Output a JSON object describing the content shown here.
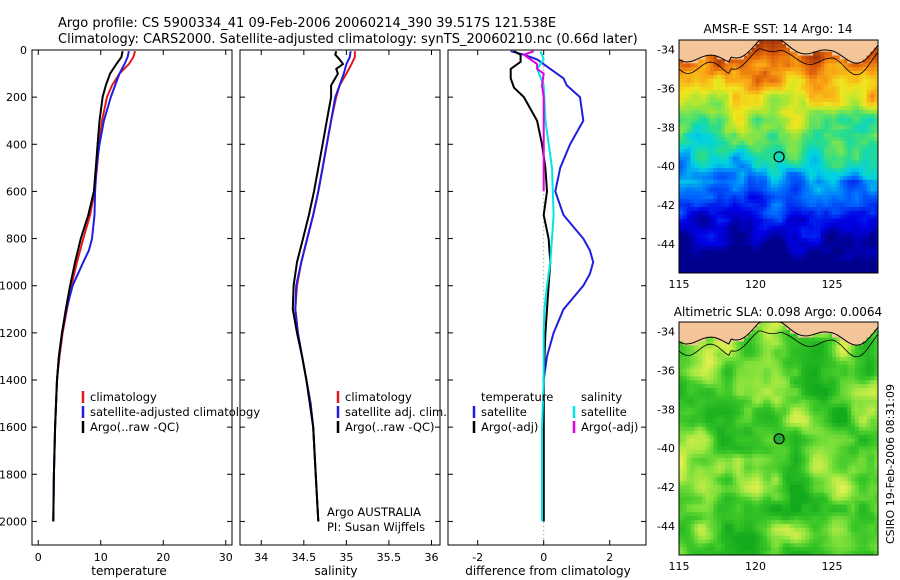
{
  "header": {
    "line1": "Argo profile: CS 5900334_41 09-Feb-2006 20060214_390 39.517S 121.538E",
    "line2": "Climatology: CARS2000. Satellite-adjusted climatology: synTS_20060210.nc (0.66d later)"
  },
  "side_label": "CSIRO 19-Feb-2006 08:31:09",
  "colors": {
    "climatology": "#e31a1c",
    "satellite": "#1f1fdf",
    "argo": "#000000",
    "satellite_salinity": "#00e5e5",
    "argo_salinity": "#e000e0",
    "land": "#f5c59a"
  },
  "chart_data": [
    {
      "type": "line",
      "name": "temperature-profile",
      "xlabel": "temperature",
      "xlim": [
        -1,
        31
      ],
      "ylim": [
        2100,
        0
      ],
      "x_ticks": [
        "0",
        "10",
        "20",
        "30"
      ],
      "y_ticks": [
        "0",
        "200",
        "400",
        "600",
        "800",
        "1000",
        "1200",
        "1400",
        "1600",
        "1800",
        "2000"
      ],
      "legend": [
        "climatology",
        "satellite-adjusted climatology",
        "Argo(..raw -QC)"
      ],
      "series": [
        {
          "name": "climatology",
          "color": "#e31a1c",
          "depth": [
            5,
            30,
            60,
            100,
            150,
            200,
            300,
            400,
            500,
            600,
            700,
            800,
            900,
            1000,
            1100,
            1200,
            1300,
            1400,
            1600,
            1800,
            2000
          ],
          "values": [
            15.5,
            15.2,
            14.5,
            13.0,
            11.8,
            11.0,
            10.2,
            9.7,
            9.4,
            9.0,
            8.3,
            7.2,
            6.2,
            5.3,
            4.6,
            3.9,
            3.4,
            3.0,
            2.7,
            2.5,
            2.4
          ]
        },
        {
          "name": "satellite-adjusted climatology",
          "color": "#1f1fdf",
          "depth": [
            5,
            30,
            60,
            100,
            150,
            200,
            300,
            400,
            500,
            600,
            700,
            800,
            850,
            900,
            1000,
            1100,
            1200,
            1300,
            1400,
            1600,
            1800,
            2000
          ],
          "values": [
            14.5,
            14.3,
            13.8,
            13.0,
            12.3,
            11.6,
            10.5,
            9.8,
            9.3,
            9.1,
            9.0,
            8.6,
            8.1,
            7.2,
            5.5,
            4.5,
            3.8,
            3.3,
            3.0,
            2.7,
            2.5,
            2.4
          ]
        },
        {
          "name": "Argo(..raw -QC)",
          "color": "#000000",
          "depth": [
            5,
            30,
            60,
            100,
            150,
            200,
            300,
            400,
            500,
            600,
            700,
            800,
            900,
            1000,
            1100,
            1200,
            1300,
            1400,
            1600,
            1800,
            2000
          ],
          "values": [
            13.5,
            13.3,
            12.5,
            11.5,
            10.8,
            10.3,
            9.8,
            9.5,
            9.2,
            8.9,
            8.0,
            6.8,
            5.9,
            5.1,
            4.4,
            3.8,
            3.3,
            3.0,
            2.7,
            2.5,
            2.4
          ]
        }
      ]
    },
    {
      "type": "line",
      "name": "salinity-profile",
      "xlabel": "salinity",
      "xlim": [
        33.75,
        36.1
      ],
      "ylim": [
        2100,
        0
      ],
      "x_ticks": [
        "34",
        "34.5",
        "35",
        "35.5",
        "36"
      ],
      "legend": [
        "climatology",
        "satellite adj. clim.",
        "Argo(..raw -QC)"
      ],
      "annotation": [
        "Argo AUSTRALIA",
        "PI: Susan Wijffels"
      ],
      "series": [
        {
          "name": "climatology",
          "color": "#e31a1c",
          "depth": [
            5,
            30,
            60,
            100,
            150,
            200,
            300,
            400,
            500,
            600,
            700,
            800,
            900,
            1000,
            1100,
            1200,
            1300,
            1400,
            1500,
            1600,
            1800,
            2000
          ],
          "values": [
            35.1,
            35.1,
            35.06,
            35.0,
            34.92,
            34.88,
            34.82,
            34.77,
            34.72,
            34.67,
            34.61,
            34.54,
            34.47,
            34.42,
            34.4,
            34.43,
            34.48,
            34.53,
            34.58,
            34.61,
            34.64,
            34.67
          ]
        },
        {
          "name": "satellite adj. clim.",
          "color": "#1f1fdf",
          "depth": [
            5,
            30,
            60,
            100,
            150,
            200,
            300,
            400,
            500,
            600,
            700,
            800,
            900,
            1000,
            1100,
            1200,
            1300,
            1400,
            1500,
            1600,
            1800,
            2000
          ],
          "values": [
            35.05,
            35.04,
            35.0,
            34.97,
            34.92,
            34.87,
            34.82,
            34.77,
            34.72,
            34.67,
            34.61,
            34.54,
            34.47,
            34.41,
            34.4,
            34.43,
            34.48,
            34.53,
            34.58,
            34.61,
            34.64,
            34.67
          ]
        },
        {
          "name": "Argo(..raw -QC)",
          "color": "#000000",
          "depth": [
            5,
            20,
            40,
            60,
            80,
            100,
            150,
            200,
            300,
            400,
            500,
            600,
            700,
            800,
            900,
            1000,
            1100,
            1200,
            1300,
            1400,
            1600,
            1800,
            2000
          ],
          "values": [
            34.88,
            34.87,
            34.92,
            34.96,
            34.88,
            34.9,
            34.82,
            34.82,
            34.77,
            34.72,
            34.67,
            34.62,
            34.56,
            34.49,
            34.42,
            34.38,
            34.37,
            34.42,
            34.48,
            34.53,
            34.61,
            34.64,
            34.67
          ]
        }
      ]
    },
    {
      "type": "line",
      "name": "difference-profile",
      "xlabel": "difference from climatology",
      "xlim": [
        -2.9,
        3.1
      ],
      "ylim": [
        2100,
        0
      ],
      "x_ticks": [
        "-2",
        "0",
        "2"
      ],
      "legend_headers": [
        "temperature",
        "salinity"
      ],
      "legend": [
        "satellite",
        "Argo(-adj)",
        "satellite",
        "Argo(-adj)"
      ],
      "series": [
        {
          "name": "temperature satellite",
          "color": "#1f1fdf",
          "depth": [
            5,
            20,
            40,
            80,
            120,
            150,
            200,
            300,
            400,
            500,
            600,
            700,
            800,
            850,
            900,
            950,
            1000,
            1050,
            1100,
            1200,
            1300,
            1400,
            1600,
            1800,
            2000
          ],
          "values": [
            -1.0,
            -0.6,
            -0.2,
            0.2,
            0.6,
            0.7,
            1.1,
            1.2,
            0.8,
            0.5,
            0.35,
            0.6,
            1.2,
            1.4,
            1.5,
            1.4,
            1.2,
            0.9,
            0.6,
            0.3,
            0.1,
            0.0,
            0.0,
            0.0,
            0.0
          ]
        },
        {
          "name": "temperature Argo(-adj)",
          "color": "#000000",
          "depth": [
            5,
            20,
            50,
            80,
            120,
            160,
            200,
            300,
            400,
            500,
            600,
            700,
            800,
            900,
            1000,
            1200,
            1400,
            1600,
            1800,
            2000
          ],
          "values": [
            -0.9,
            -0.7,
            -0.7,
            -1.0,
            -1.0,
            -0.9,
            -0.6,
            -0.2,
            -0.05,
            0.05,
            0.1,
            0.0,
            0.15,
            0.2,
            0.15,
            0.05,
            0.0,
            0.0,
            0.0,
            0.0
          ]
        },
        {
          "name": "salinity satellite",
          "color": "#00e5e5",
          "depth": [
            5,
            40,
            80,
            150,
            300,
            500,
            700,
            800,
            900,
            1000,
            1100,
            1200,
            1400,
            1600,
            1800,
            2000
          ],
          "values": [
            -0.1,
            0.0,
            -0.2,
            0.0,
            0.05,
            0.25,
            0.3,
            0.25,
            0.2,
            0.1,
            0.02,
            0.0,
            0.0,
            -0.05,
            -0.05,
            -0.05
          ]
        },
        {
          "name": "salinity Argo(-adj)",
          "color": "#e000e0",
          "depth": [
            5,
            20,
            40,
            60,
            80,
            100,
            150,
            200,
            300,
            500,
            600
          ],
          "values": [
            -0.3,
            -0.6,
            -0.4,
            -0.2,
            -0.2,
            0.0,
            -0.05,
            0.0,
            0.0,
            0.0,
            0.0
          ]
        }
      ]
    },
    {
      "type": "heatmap",
      "name": "sst-map",
      "title": "AMSR-E SST: 14 Argo: 14",
      "xlim": [
        115,
        128
      ],
      "ylim": [
        -45.5,
        -33.5
      ],
      "x_ticks": [
        "115",
        "120",
        "125"
      ],
      "y_ticks": [
        "-34",
        "-36",
        "-38",
        "-40",
        "-42",
        "-44"
      ],
      "float_position": [
        121.538,
        -39.517
      ]
    },
    {
      "type": "heatmap",
      "name": "sla-map",
      "title": "Altimetric SLA: 0.098 Argo: 0.0064",
      "xlim": [
        115,
        128
      ],
      "ylim": [
        -45.5,
        -33.5
      ],
      "x_ticks": [
        "115",
        "120",
        "125"
      ],
      "y_ticks": [
        "-34",
        "-36",
        "-38",
        "-40",
        "-42",
        "-44"
      ],
      "float_position": [
        121.538,
        -39.517
      ]
    }
  ]
}
